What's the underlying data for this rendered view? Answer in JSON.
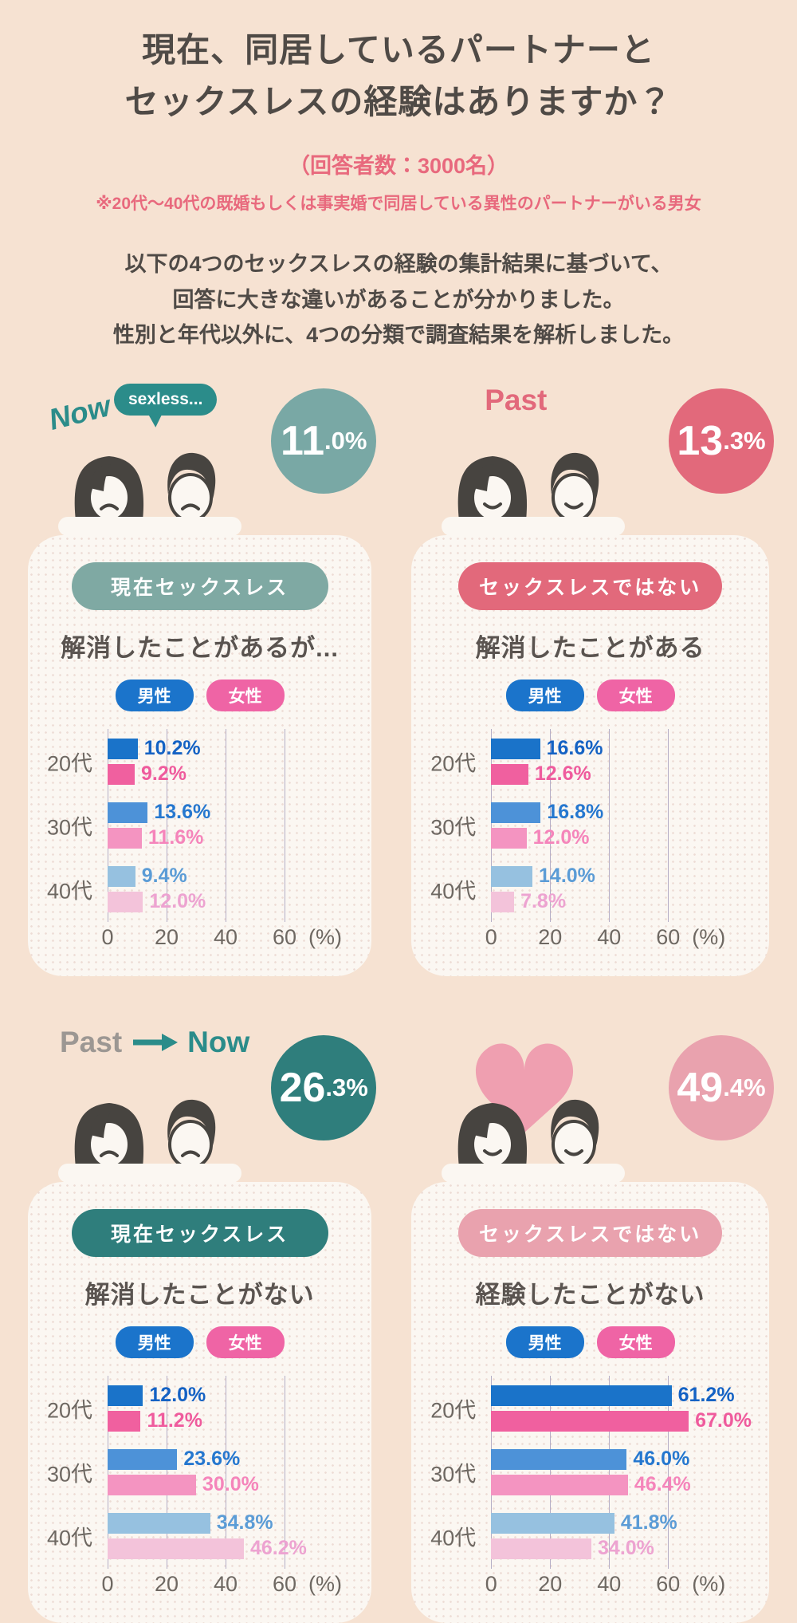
{
  "page": {
    "title_line1": "現在、同居しているパートナーと",
    "title_line2": "セックスレスの経験はありますか？",
    "respondents": "（回答者数：3000名）",
    "note": "※20代〜40代の既婚もしくは事実婚で同居している異性のパートナーがいる男女",
    "desc_line1": "以下の4つのセックスレスの経験の集計結果に基づいて、",
    "desc_line2": "回答に大きな違いがあることが分かりました。",
    "desc_line3": "性別と年代以外に、4つの分類で調査結果を解析しました。"
  },
  "legend": {
    "male": "男性",
    "female": "女性"
  },
  "colors": {
    "background": "#f6e2d2",
    "accent_pink": "#e8697d",
    "teal": "#2b8c8a",
    "grid": "#b5aec6",
    "male_bars": [
      "#1a73c9",
      "#4d92d8",
      "#96c1e0"
    ],
    "female_bars": [
      "#f0609f",
      "#f494c1",
      "#f3c3da"
    ],
    "male_labels": [
      "#1462c4",
      "#2577cf",
      "#5b9cd6"
    ],
    "female_labels": [
      "#ef5b9d",
      "#f585bb",
      "#eda3d1"
    ]
  },
  "panels": [
    {
      "label_now": "Now",
      "bubble": "sexless...",
      "percent": "11.0%",
      "circle_color": "#79a8a5",
      "pill": "現在セックスレス",
      "pill_color": "#7fa9a3",
      "heading": "解消したことがあるが...",
      "mood": "sad"
    },
    {
      "label_past": "Past",
      "percent": "13.3%",
      "circle_color": "#e2697b",
      "pill": "セックスレスではない",
      "pill_color": "#e2697b",
      "heading": "解消したことがある",
      "mood": "happy"
    },
    {
      "label_past": "Past",
      "label_now": "Now",
      "percent": "26.3%",
      "circle_color": "#2f7e7c",
      "pill": "現在セックスレス",
      "pill_color": "#2f7e7c",
      "heading": "解消したことがない",
      "mood": "sad"
    },
    {
      "percent": "49.4%",
      "circle_color": "#e9a2ae",
      "pill": "セックスレスではない",
      "pill_color": "#e9a2ae",
      "heading": "経験したことがない",
      "mood": "happy"
    }
  ],
  "chart_data": [
    {
      "type": "bar",
      "orientation": "horizontal",
      "title": "現在セックスレス / 解消したことがあるが...",
      "overall_percent": 11.0,
      "categories": [
        "20代",
        "30代",
        "40代"
      ],
      "series": [
        {
          "name": "男性",
          "values": [
            10.2,
            13.6,
            9.4
          ]
        },
        {
          "name": "女性",
          "values": [
            9.2,
            11.6,
            12.0
          ]
        }
      ],
      "xlim": [
        0,
        67
      ],
      "ticks": [
        0,
        20,
        40,
        60
      ],
      "unit": "(%)",
      "grid": true,
      "legend_position": "top"
    },
    {
      "type": "bar",
      "orientation": "horizontal",
      "title": "セックスレスではない / 解消したことがある",
      "overall_percent": 13.3,
      "categories": [
        "20代",
        "30代",
        "40代"
      ],
      "series": [
        {
          "name": "男性",
          "values": [
            16.6,
            16.8,
            14.0
          ]
        },
        {
          "name": "女性",
          "values": [
            12.6,
            12.0,
            7.8
          ]
        }
      ],
      "xlim": [
        0,
        67
      ],
      "ticks": [
        0,
        20,
        40,
        60
      ],
      "unit": "(%)",
      "grid": true,
      "legend_position": "top"
    },
    {
      "type": "bar",
      "orientation": "horizontal",
      "title": "現在セックスレス / 解消したことがない",
      "overall_percent": 26.3,
      "categories": [
        "20代",
        "30代",
        "40代"
      ],
      "series": [
        {
          "name": "男性",
          "values": [
            12.0,
            23.6,
            34.8
          ]
        },
        {
          "name": "女性",
          "values": [
            11.2,
            30.0,
            46.2
          ]
        }
      ],
      "xlim": [
        0,
        67
      ],
      "ticks": [
        0,
        20,
        40,
        60
      ],
      "unit": "(%)",
      "grid": true,
      "legend_position": "top"
    },
    {
      "type": "bar",
      "orientation": "horizontal",
      "title": "セックスレスではない / 経験したことがない",
      "overall_percent": 49.4,
      "categories": [
        "20代",
        "30代",
        "40代"
      ],
      "series": [
        {
          "name": "男性",
          "values": [
            61.2,
            46.0,
            41.8
          ]
        },
        {
          "name": "女性",
          "values": [
            67.0,
            46.4,
            34.0
          ]
        }
      ],
      "xlim": [
        0,
        67
      ],
      "ticks": [
        0,
        20,
        40,
        60
      ],
      "unit": "(%)",
      "grid": true,
      "legend_position": "top"
    }
  ]
}
